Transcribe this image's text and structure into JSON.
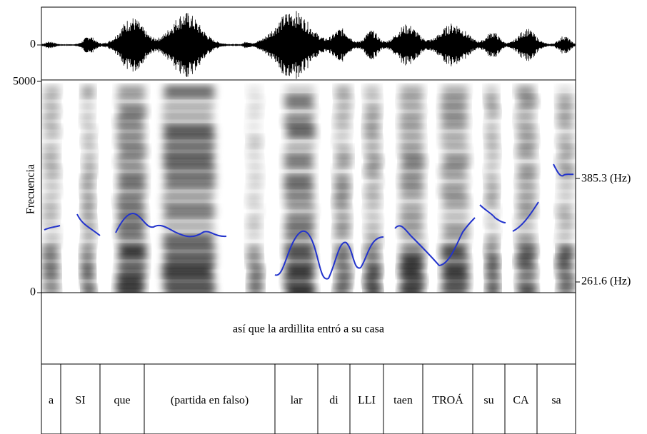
{
  "waveform": {
    "zero_label": "0"
  },
  "spectrogram": {
    "top_label": "5000",
    "bottom_label": "0",
    "axis_label": "Frecuencia"
  },
  "pitch": {
    "top_label": "385.3 (Hz)",
    "bottom_label": "261.6 (Hz)"
  },
  "sentence_tier": {
    "text": "así que la ardillita entró a su casa"
  },
  "syllable_tier": {
    "syllables": [
      "a",
      "SI",
      "que",
      "(partida en falso)",
      "lar",
      "di",
      "LLI",
      "taen",
      "TROÁ",
      "su",
      "CA",
      "sa"
    ]
  }
}
